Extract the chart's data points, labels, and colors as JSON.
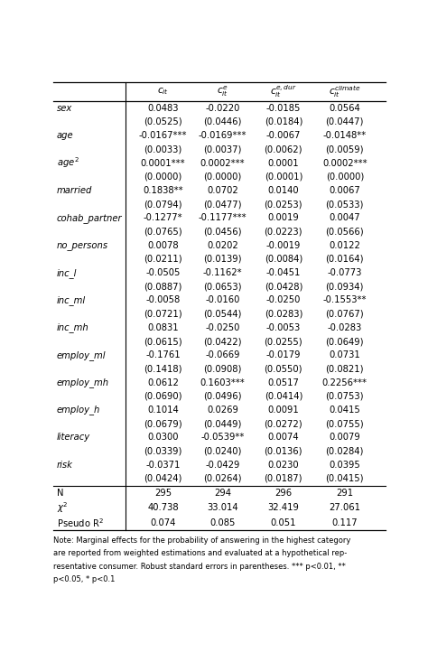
{
  "col_header_texts": [
    "$c_{it}$",
    "$c^{e}_{it}$",
    "$c^{e,dur}_{it}$",
    "$c^{climate}_{it}$"
  ],
  "row_label_names": [
    "sex",
    "age",
    "age$^2$",
    "married",
    "cohab_partner",
    "no_persons",
    "inc_l",
    "inc_ml",
    "inc_mh",
    "employ_ml",
    "employ_mh",
    "employ_h",
    "literacy",
    "risk"
  ],
  "rows": [
    [
      "0.0483",
      "-0.0220",
      "-0.0185",
      "0.0564"
    ],
    [
      "(0.0525)",
      "(0.0446)",
      "(0.0184)",
      "(0.0447)"
    ],
    [
      "-0.0167***",
      "-0.0169***",
      "-0.0067",
      "-0.0148**"
    ],
    [
      "(0.0033)",
      "(0.0037)",
      "(0.0062)",
      "(0.0059)"
    ],
    [
      "0.0001***",
      "0.0002***",
      "0.0001",
      "0.0002***"
    ],
    [
      "(0.0000)",
      "(0.0000)",
      "(0.0001)",
      "(0.0000)"
    ],
    [
      "0.1838**",
      "0.0702",
      "0.0140",
      "0.0067"
    ],
    [
      "(0.0794)",
      "(0.0477)",
      "(0.0253)",
      "(0.0533)"
    ],
    [
      "-0.1277*",
      "-0.1177***",
      "0.0019",
      "0.0047"
    ],
    [
      "(0.0765)",
      "(0.0456)",
      "(0.0223)",
      "(0.0566)"
    ],
    [
      "0.0078",
      "0.0202",
      "-0.0019",
      "0.0122"
    ],
    [
      "(0.0211)",
      "(0.0139)",
      "(0.0084)",
      "(0.0164)"
    ],
    [
      "-0.0505",
      "-0.1162*",
      "-0.0451",
      "-0.0773"
    ],
    [
      "(0.0887)",
      "(0.0653)",
      "(0.0428)",
      "(0.0934)"
    ],
    [
      "-0.0058",
      "-0.0160",
      "-0.0250",
      "-0.1553**"
    ],
    [
      "(0.0721)",
      "(0.0544)",
      "(0.0283)",
      "(0.0767)"
    ],
    [
      "0.0831",
      "-0.0250",
      "-0.0053",
      "-0.0283"
    ],
    [
      "(0.0615)",
      "(0.0422)",
      "(0.0255)",
      "(0.0649)"
    ],
    [
      "-0.1761",
      "-0.0669",
      "-0.0179",
      "0.0731"
    ],
    [
      "(0.1418)",
      "(0.0908)",
      "(0.0550)",
      "(0.0821)"
    ],
    [
      "0.0612",
      "0.1603***",
      "0.0517",
      "0.2256***"
    ],
    [
      "(0.0690)",
      "(0.0496)",
      "(0.0414)",
      "(0.0753)"
    ],
    [
      "0.1014",
      "0.0269",
      "0.0091",
      "0.0415"
    ],
    [
      "(0.0679)",
      "(0.0449)",
      "(0.0272)",
      "(0.0755)"
    ],
    [
      "0.0300",
      "-0.0539**",
      "0.0074",
      "0.0079"
    ],
    [
      "(0.0339)",
      "(0.0240)",
      "(0.0136)",
      "(0.0284)"
    ],
    [
      "-0.0371",
      "-0.0429",
      "0.0230",
      "0.0395"
    ],
    [
      "(0.0424)",
      "(0.0264)",
      "(0.0187)",
      "(0.0415)"
    ]
  ],
  "stat_labels": [
    "N",
    "$\\chi^2$",
    "Pseudo R$^2$"
  ],
  "stat_rows": [
    [
      "295",
      "294",
      "296",
      "291"
    ],
    [
      "40.738",
      "33.014",
      "32.419",
      "27.061"
    ],
    [
      "0.074",
      "0.085",
      "0.051",
      "0.117"
    ]
  ],
  "note_lines": [
    "Note: Marginal effects for the probability of answering in the highest category",
    "are reported from weighted estimations and evaluated at a hypothetical rep-",
    "resentative consumer. Robust standard errors in parentheses. *** p<0.01, **",
    "p<0.05, * p<0.1"
  ],
  "bg_color": "#ffffff",
  "text_color": "#000000",
  "font_size": 7.2,
  "note_font_size": 6.0
}
